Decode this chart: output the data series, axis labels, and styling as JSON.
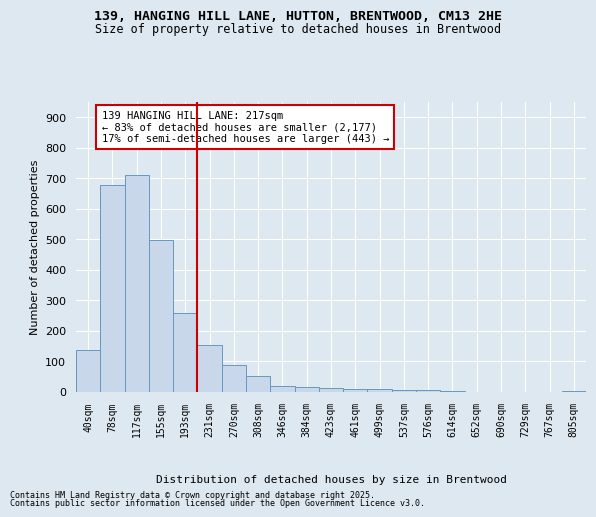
{
  "title_line1": "139, HANGING HILL LANE, HUTTON, BRENTWOOD, CM13 2HE",
  "title_line2": "Size of property relative to detached houses in Brentwood",
  "xlabel": "Distribution of detached houses by size in Brentwood",
  "ylabel": "Number of detached properties",
  "bar_color": "#c8d8ea",
  "bar_edge_color": "#6898c0",
  "background_color": "#dde8f0",
  "grid_color": "#ffffff",
  "vline_color": "#cc0000",
  "vline_x_index": 4.5,
  "annotation_text": "139 HANGING HILL LANE: 217sqm\n← 83% of detached houses are smaller (2,177)\n17% of semi-detached houses are larger (443) →",
  "annotation_box_color": "#ffffff",
  "annotation_box_edge": "#cc0000",
  "categories": [
    "40sqm",
    "78sqm",
    "117sqm",
    "155sqm",
    "193sqm",
    "231sqm",
    "270sqm",
    "308sqm",
    "346sqm",
    "384sqm",
    "423sqm",
    "461sqm",
    "499sqm",
    "537sqm",
    "576sqm",
    "614sqm",
    "652sqm",
    "690sqm",
    "729sqm",
    "767sqm",
    "805sqm"
  ],
  "values": [
    137,
    679,
    710,
    497,
    258,
    153,
    87,
    51,
    20,
    16,
    14,
    10,
    10,
    5,
    5,
    3,
    1,
    1,
    0,
    0,
    2
  ],
  "ylim": [
    0,
    950
  ],
  "yticks": [
    0,
    100,
    200,
    300,
    400,
    500,
    600,
    700,
    800,
    900
  ],
  "footnote1": "Contains HM Land Registry data © Crown copyright and database right 2025.",
  "footnote2": "Contains public sector information licensed under the Open Government Licence v3.0."
}
